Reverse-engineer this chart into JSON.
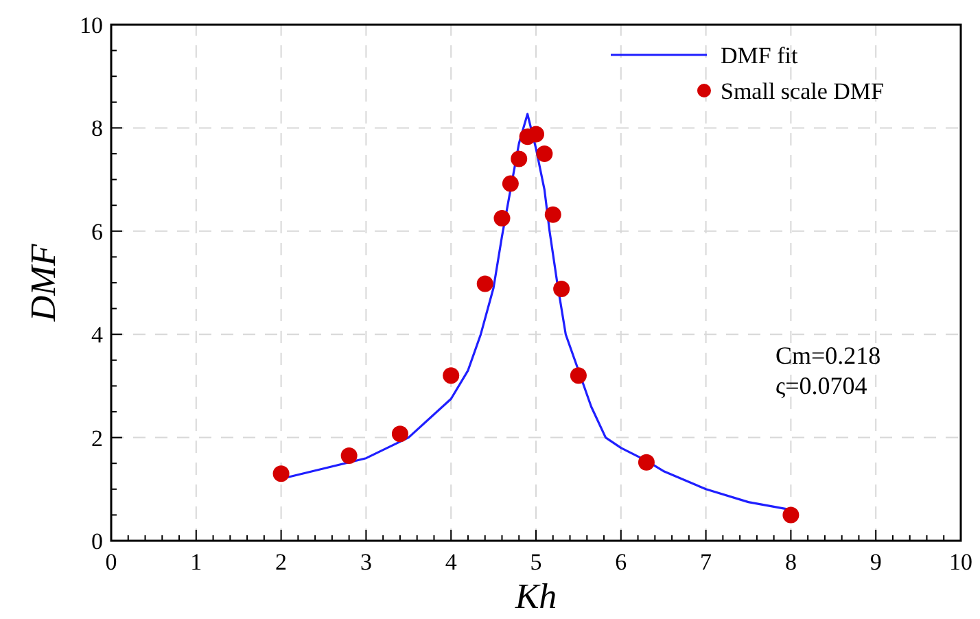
{
  "chart_data": {
    "type": "scatter",
    "xlabel": "Kh",
    "ylabel": "DMF",
    "xlim": [
      0,
      10
    ],
    "ylim": [
      0,
      10
    ],
    "xticks": [
      0,
      1,
      2,
      3,
      4,
      5,
      6,
      7,
      8,
      9,
      10
    ],
    "yticks": [
      0,
      2,
      4,
      6,
      8,
      10
    ],
    "grid": true,
    "legend": "top right",
    "annotations": [
      "Cm=0.218",
      "ς=0.0704"
    ],
    "series": [
      {
        "name": "DMF fit",
        "type": "line",
        "color": "#1f1fff",
        "marker": "none",
        "line_style": "solid",
        "x": [
          2,
          2.5,
          3,
          3.5,
          4,
          4.2,
          4.35,
          4.5,
          4.6,
          4.7,
          4.8,
          4.9,
          5,
          5.1,
          5.16,
          5.25,
          5.35,
          5.5,
          5.65,
          5.82,
          6,
          6.3,
          6.5,
          7,
          7.5,
          8
        ],
        "values": [
          1.2,
          1.4,
          1.6,
          2.0,
          2.75,
          3.3,
          4.0,
          4.9,
          5.9,
          6.8,
          7.7,
          8.27,
          7.6,
          6.8,
          6.0,
          5.0,
          4.0,
          3.3,
          2.6,
          2.0,
          1.8,
          1.55,
          1.35,
          1.0,
          0.75,
          0.6
        ]
      },
      {
        "name": "Small scale DMF",
        "color": "#d40000",
        "marker": "circle",
        "x": [
          2,
          2.8,
          3.4,
          4.0,
          4.4,
          4.6,
          4.7,
          4.8,
          4.9,
          5.0,
          5.1,
          5.2,
          5.3,
          5.5,
          6.3,
          8.0
        ],
        "values": [
          1.3,
          1.65,
          2.07,
          3.2,
          4.98,
          6.25,
          6.92,
          7.4,
          7.83,
          7.88,
          7.5,
          6.32,
          4.88,
          3.2,
          1.52,
          0.5
        ]
      }
    ]
  }
}
